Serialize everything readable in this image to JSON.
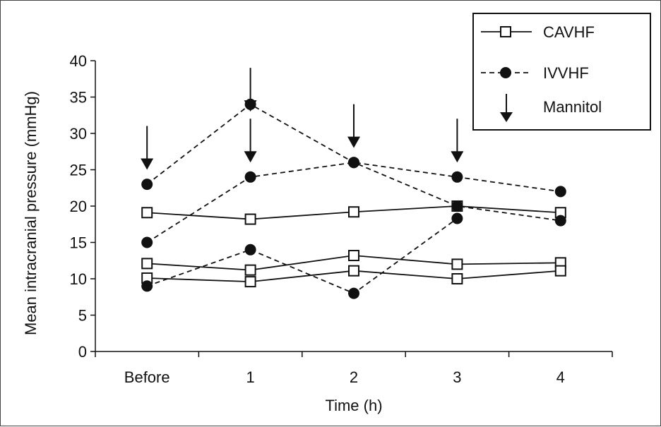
{
  "chart_data": {
    "type": "line",
    "title": "",
    "xlabel": "Time (h)",
    "ylabel": "Mean intracranial pressure (mmHg)",
    "categories": [
      "Before",
      "1",
      "2",
      "3",
      "4"
    ],
    "ylim": [
      0,
      40
    ],
    "yticks": [
      0,
      5,
      10,
      15,
      20,
      25,
      30,
      35,
      40
    ],
    "grid": false,
    "legend": {
      "placement": "top-right",
      "entries": [
        {
          "label": "CAVHF",
          "marker": "open-square",
          "line": "solid"
        },
        {
          "label": "IVVHF",
          "marker": "filled-circle",
          "line": "dashed"
        },
        {
          "label": "Mannitol",
          "marker": "down-arrow",
          "line": "none"
        }
      ]
    },
    "series": [
      {
        "name": "CAVHF",
        "group": "CAVHF",
        "values": [
          19.1,
          18.2,
          19.2,
          20,
          19.1
        ]
      },
      {
        "name": "CAVHF",
        "group": "CAVHF",
        "values": [
          12.1,
          11.2,
          13.2,
          12,
          12.2
        ]
      },
      {
        "name": "CAVHF",
        "group": "CAVHF",
        "values": [
          10.1,
          9.6,
          11.1,
          10,
          11.1
        ]
      },
      {
        "name": "IVVHF",
        "group": "IVVHF",
        "values": [
          23,
          34,
          26,
          20,
          18
        ]
      },
      {
        "name": "IVVHF",
        "group": "IVVHF",
        "values": [
          15,
          24,
          26,
          24,
          22
        ]
      },
      {
        "name": "IVVHF",
        "group": "IVVHF",
        "values": [
          9,
          14,
          8,
          18.3,
          null
        ]
      }
    ],
    "annotations": [
      {
        "type": "mannitol-arrow",
        "category": "Before",
        "tip_value": 25
      },
      {
        "type": "mannitol-arrow",
        "category": "1",
        "tip_value": 33
      },
      {
        "type": "mannitol-arrow",
        "category": "1",
        "tip_value": 26
      },
      {
        "type": "mannitol-arrow",
        "category": "2",
        "tip_value": 28
      },
      {
        "type": "mannitol-arrow",
        "category": "3",
        "tip_value": 26
      }
    ]
  }
}
